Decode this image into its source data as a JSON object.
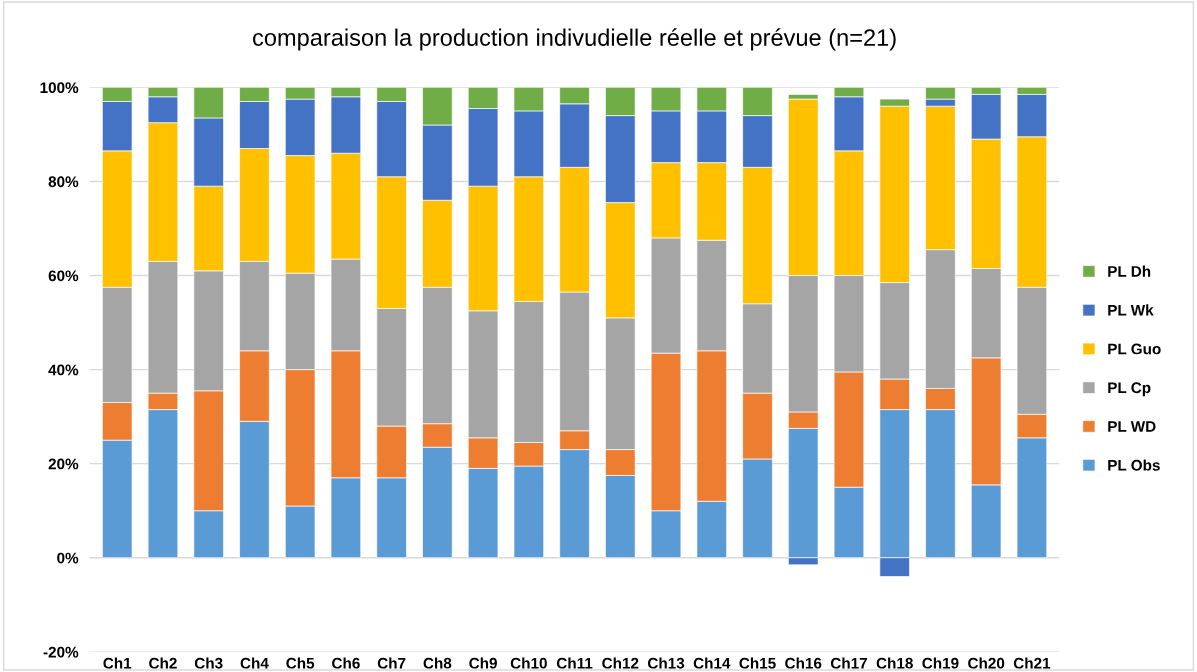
{
  "chart_data": {
    "type": "bar",
    "stacked": true,
    "title": "comparaison la production indivudielle réelle et prévue (n=21)",
    "categories": [
      "Ch1",
      "Ch2",
      "Ch3",
      "Ch4",
      "Ch5",
      "Ch6",
      "Ch7",
      "Ch8",
      "Ch9",
      "Ch10",
      "Ch11",
      "Ch12",
      "Ch13",
      "Ch14",
      "Ch15",
      "Ch16",
      "Ch17",
      "Ch18",
      "Ch19",
      "Ch20",
      "Ch21"
    ],
    "series": [
      {
        "name": "PL Obs",
        "color": "#5b9bd5",
        "values": [
          25,
          31.5,
          10,
          29,
          11,
          17,
          17,
          23.5,
          19,
          19.5,
          23,
          17.5,
          10,
          12,
          21,
          27.5,
          15,
          31.5,
          31.5,
          15.5,
          25.5
        ]
      },
      {
        "name": "PL WD",
        "color": "#ed7d31",
        "values": [
          8,
          3.5,
          25.5,
          15,
          29,
          27,
          11,
          5,
          6.5,
          5,
          4,
          5.5,
          33.5,
          32,
          14,
          3.5,
          24.5,
          6.5,
          4.5,
          27,
          5
        ]
      },
      {
        "name": "PL Cp",
        "color": "#a5a5a5",
        "values": [
          24.5,
          28,
          25.5,
          19,
          20.5,
          19.5,
          25,
          29,
          27,
          30,
          29.5,
          28,
          24.5,
          23.5,
          19,
          29,
          20.5,
          20.5,
          29.5,
          19,
          27
        ]
      },
      {
        "name": "PL Guo",
        "color": "#ffc000",
        "values": [
          29,
          29.5,
          18,
          24,
          25,
          22.5,
          28,
          18.5,
          26.5,
          26.5,
          26.5,
          24.5,
          16,
          16.5,
          29,
          37.5,
          26.5,
          37.5,
          30.5,
          27.5,
          32
        ]
      },
      {
        "name": "PL Wk",
        "color": "#4472c4",
        "values": [
          10.5,
          5.5,
          14.5,
          10,
          12,
          12,
          16,
          16,
          16.5,
          14,
          13.5,
          18.5,
          11,
          11,
          11,
          -1.5,
          11.5,
          -4,
          1.5,
          9.5,
          9
        ]
      },
      {
        "name": "PL Dh",
        "color": "#70ad47",
        "values": [
          3,
          2,
          6.5,
          3,
          2.5,
          2,
          3,
          8,
          4.5,
          5,
          3.5,
          6,
          5,
          5,
          6,
          1,
          2,
          1.5,
          2.5,
          1.5,
          1.5
        ]
      }
    ],
    "ylim": [
      -20,
      100
    ],
    "yticks": [
      {
        "value": -20,
        "label": "-20%"
      },
      {
        "value": 0,
        "label": "0%"
      },
      {
        "value": 20,
        "label": "20%"
      },
      {
        "value": 40,
        "label": "40%"
      },
      {
        "value": 60,
        "label": "60%"
      },
      {
        "value": 80,
        "label": "80%"
      },
      {
        "value": 100,
        "label": "100%"
      }
    ],
    "grid": "y",
    "legend": "right"
  }
}
